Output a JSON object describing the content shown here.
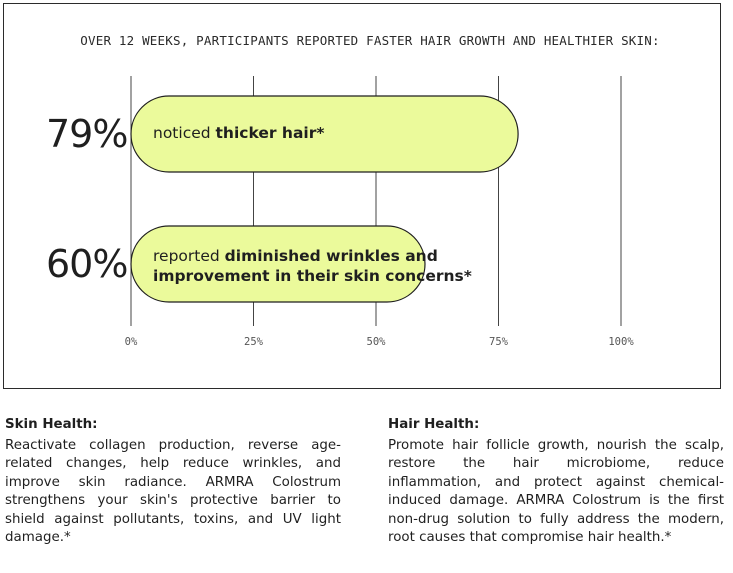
{
  "chart_data": {
    "type": "bar",
    "orientation": "horizontal",
    "title": "OVER 12 WEEKS, PARTICIPANTS REPORTED FASTER HAIR GROWTH AND HEALTHIER SKIN:",
    "xlim": [
      0,
      100
    ],
    "ticks": [
      0,
      25,
      50,
      75,
      100
    ],
    "tick_labels": [
      "0%",
      "25%",
      "50%",
      "75%",
      "100%"
    ],
    "grid": true,
    "bar_color": "#ebfa9b",
    "bars": [
      {
        "value": 79,
        "value_label": "79%",
        "label_prefix": "noticed ",
        "label_bold_1": "thicker hair*",
        "label_bold_2": ""
      },
      {
        "value": 60,
        "value_label": "60%",
        "label_prefix": "reported ",
        "label_bold_1": "diminished wrinkles and",
        "label_bold_2": "improvement in their skin concerns*"
      }
    ]
  },
  "skin": {
    "heading": "Skin Health:",
    "body": "Reactivate collagen production, reverse age-related changes, help reduce wrinkles, and improve skin radiance. ARMRA Colostrum strengthens your skin's protective barrier to shield against pollutants, toxins, and UV light damage.*"
  },
  "hair": {
    "heading": "Hair Health:",
    "body": "Promote hair follicle growth, nourish the scalp, restore the hair microbiome, reduce inflammation, and protect against chemical-induced damage. ARMRA Colostrum is the first non-drug solution to fully address the modern, root causes that compromise hair health.*"
  }
}
